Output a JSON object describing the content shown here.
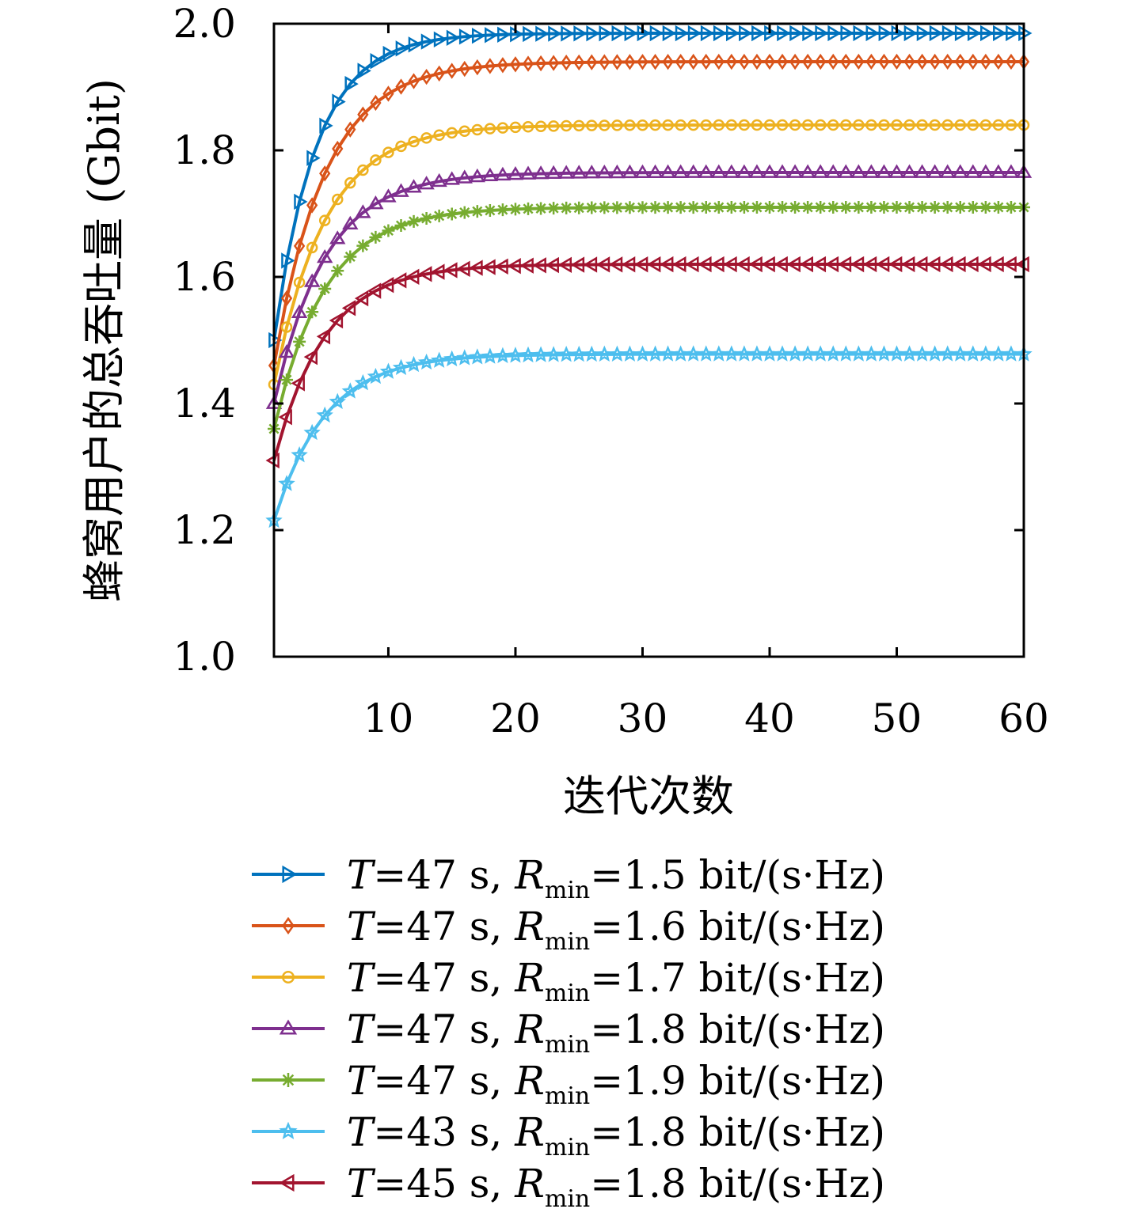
{
  "chart_data": {
    "type": "line",
    "xlabel": "迭代次数",
    "ylabel": "蜂窝用户的总吞吐量 (Gbit)",
    "xlim": [
      1,
      60
    ],
    "ylim": [
      1.0,
      2.0
    ],
    "xticks": [
      10,
      20,
      30,
      40,
      50,
      60
    ],
    "yticks": [
      "1.0",
      "1.2",
      "1.4",
      "1.6",
      "1.8",
      "2.0"
    ],
    "grid": false,
    "legend_position": "below",
    "series": [
      {
        "name": "T=47 s, Rmin=1.5 bit/(s·Hz)",
        "legend": {
          "T": "T",
          "eq1": "=47 s, ",
          "R": "R",
          "sub": "min",
          "rest": "=1.5 bit/(s·Hz)"
        },
        "color": "#0072bd",
        "marker": "triangle-right",
        "start": 1.5,
        "end": 1.985,
        "rate": 0.3
      },
      {
        "name": "T=47 s, Rmin=1.6 bit/(s·Hz)",
        "legend": {
          "T": "T",
          "eq1": "=47 s, ",
          "R": "R",
          "sub": "min",
          "rest": "=1.6 bit/(s·Hz)"
        },
        "color": "#d95319",
        "marker": "diamond",
        "start": 1.46,
        "end": 1.94,
        "rate": 0.25
      },
      {
        "name": "T=47 s, Rmin=1.7 bit/(s·Hz)",
        "legend": {
          "T": "T",
          "eq1": "=47 s, ",
          "R": "R",
          "sub": "min",
          "rest": "=1.7 bit/(s·Hz)"
        },
        "color": "#edb120",
        "marker": "circle",
        "start": 1.43,
        "end": 1.84,
        "rate": 0.25
      },
      {
        "name": "T=47 s, Rmin=1.8 bit/(s·Hz)",
        "legend": {
          "T": "T",
          "eq1": "=47 s, ",
          "R": "R",
          "sub": "min",
          "rest": "=1.8 bit/(s·Hz)"
        },
        "color": "#7e2f8e",
        "marker": "triangle-up",
        "start": 1.4,
        "end": 1.765,
        "rate": 0.25
      },
      {
        "name": "T=47 s, Rmin=1.9 bit/(s·Hz)",
        "legend": {
          "T": "T",
          "eq1": "=47 s, ",
          "R": "R",
          "sub": "min",
          "rest": "=1.9 bit/(s·Hz)"
        },
        "color": "#77ac30",
        "marker": "asterisk",
        "start": 1.36,
        "end": 1.71,
        "rate": 0.25
      },
      {
        "name": "T=43 s, Rmin=1.8 bit/(s·Hz)",
        "legend": {
          "T": "T",
          "eq1": "=43 s, ",
          "R": "R",
          "sub": "min",
          "rest": "=1.8 bit/(s·Hz)"
        },
        "color": "#4dbeee",
        "marker": "star",
        "start": 1.215,
        "end": 1.478,
        "rate": 0.25
      },
      {
        "name": "T=45 s, Rmin=1.8 bit/(s·Hz)",
        "legend": {
          "T": "T",
          "eq1": "=45 s, ",
          "R": "R",
          "sub": "min",
          "rest": "=1.8 bit/(s·Hz)"
        },
        "color": "#a2142f",
        "marker": "triangle-left",
        "start": 1.31,
        "end": 1.62,
        "rate": 0.25
      }
    ]
  }
}
